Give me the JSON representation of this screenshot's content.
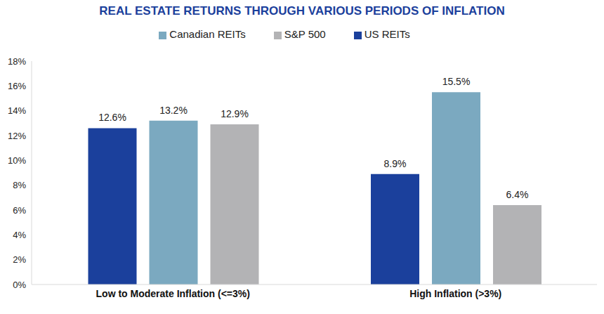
{
  "chart_data": {
    "type": "bar",
    "title": "REAL ESTATE RETURNS THROUGH VARIOUS PERIODS OF INFLATION",
    "categories": [
      "Low to Moderate Inflation (<=3%)",
      "High Inflation (>3%)"
    ],
    "series": [
      {
        "name": "US REITs",
        "color": "#1b409c",
        "values": [
          12.6,
          8.9
        ],
        "value_labels": [
          "12.6%",
          "8.9%"
        ]
      },
      {
        "name": "Canadian REITs",
        "color": "#7ba9c0",
        "values": [
          13.2,
          15.5
        ],
        "value_labels": [
          "13.2%",
          "15.5%"
        ]
      },
      {
        "name": "S&P 500",
        "color": "#b3b3b5",
        "values": [
          12.9,
          6.4
        ],
        "value_labels": [
          "12.9%",
          "6.4%"
        ]
      }
    ],
    "ylim": [
      0,
      18
    ],
    "yticks": [
      {
        "value": 0,
        "label": "0%"
      },
      {
        "value": 2,
        "label": "2%"
      },
      {
        "value": 4,
        "label": "4%"
      },
      {
        "value": 6,
        "label": "6%"
      },
      {
        "value": 8,
        "label": "8%"
      },
      {
        "value": 10,
        "label": "10%"
      },
      {
        "value": 12,
        "label": "12%"
      },
      {
        "value": 14,
        "label": "14%"
      },
      {
        "value": 16,
        "label": "16%"
      },
      {
        "value": 18,
        "label": "18%"
      }
    ],
    "grid": false,
    "legend": "top",
    "data_labels": true
  }
}
